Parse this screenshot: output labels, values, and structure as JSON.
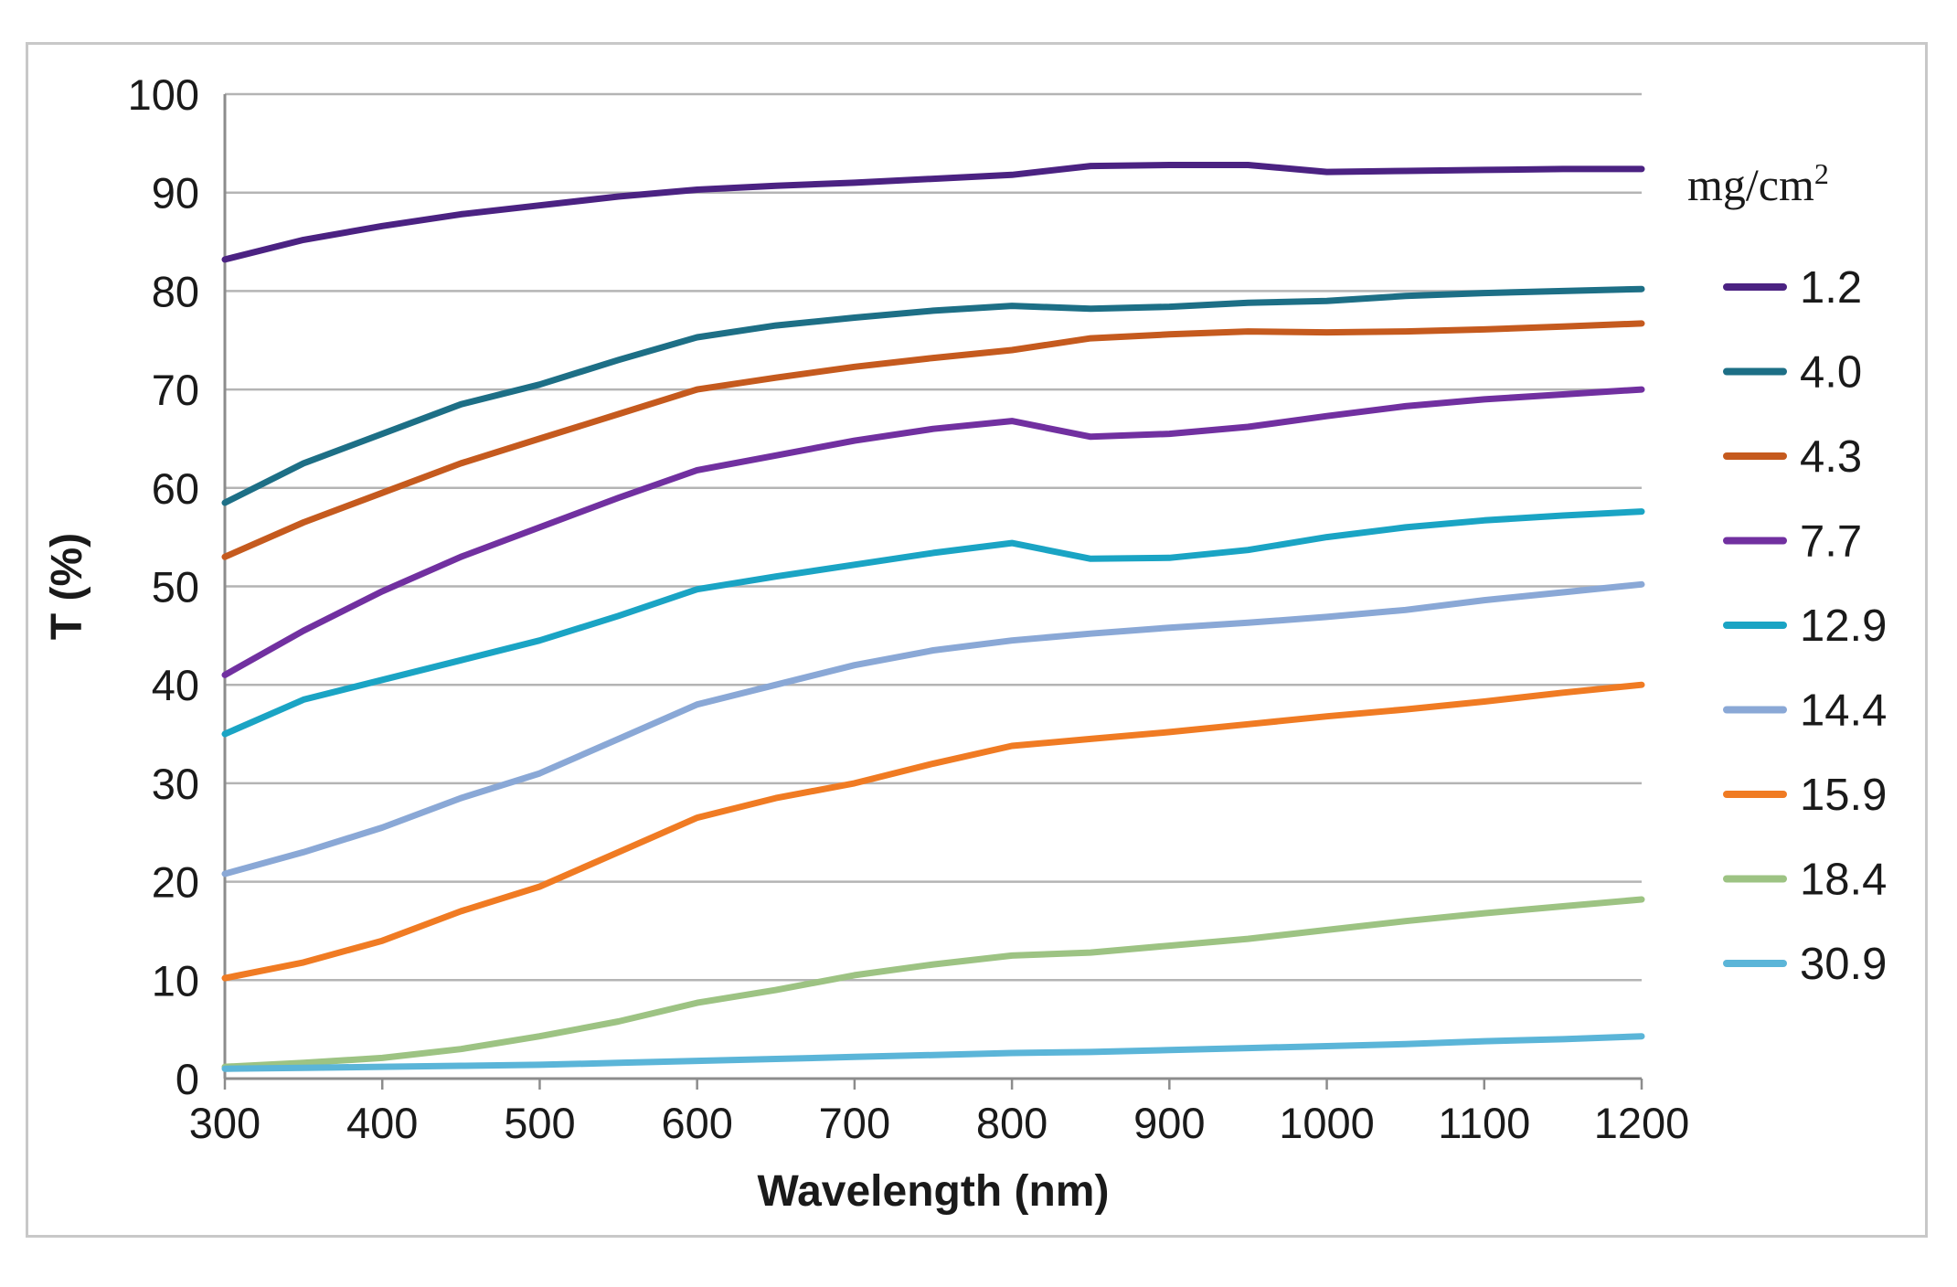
{
  "chart_data": {
    "type": "line",
    "title": "",
    "xlabel": "Wavelength (nm)",
    "ylabel": "T (%)",
    "xlim": [
      300,
      1200
    ],
    "ylim": [
      0,
      100
    ],
    "x_ticks": [
      "300",
      "400",
      "500",
      "600",
      "700",
      "800",
      "900",
      "1000",
      "1100",
      "1200"
    ],
    "y_ticks": [
      "0",
      "10",
      "20",
      "30",
      "40",
      "50",
      "60",
      "70",
      "80",
      "90",
      "100"
    ],
    "grid": true,
    "legend_position": "right",
    "legend_title": "mg/cm",
    "legend_title_sup": "2",
    "x": [
      300,
      350,
      400,
      450,
      500,
      550,
      600,
      650,
      700,
      750,
      800,
      850,
      900,
      950,
      1000,
      1050,
      1100,
      1150,
      1200
    ],
    "series": [
      {
        "name": "1.2",
        "color": "#4b2282",
        "values": [
          83.2,
          85.2,
          86.6,
          87.8,
          88.7,
          89.6,
          90.3,
          90.7,
          91.0,
          91.4,
          91.8,
          92.7,
          92.8,
          92.8,
          92.1,
          92.2,
          92.3,
          92.4,
          92.4
        ]
      },
      {
        "name": "4.0",
        "color": "#1d6f86",
        "values": [
          58.5,
          62.5,
          65.5,
          68.5,
          70.5,
          73.0,
          75.3,
          76.5,
          77.3,
          78.0,
          78.5,
          78.2,
          78.4,
          78.8,
          79.0,
          79.5,
          79.8,
          80.0,
          80.2
        ]
      },
      {
        "name": "4.3",
        "color": "#c55a1e",
        "values": [
          53.0,
          56.5,
          59.5,
          62.5,
          65.0,
          67.5,
          70.0,
          71.2,
          72.3,
          73.2,
          74.0,
          75.2,
          75.6,
          75.9,
          75.8,
          75.9,
          76.1,
          76.4,
          76.7
        ]
      },
      {
        "name": "7.7",
        "color": "#7130a0",
        "values": [
          41.0,
          45.5,
          49.5,
          53.0,
          56.0,
          59.0,
          61.8,
          63.3,
          64.8,
          66.0,
          66.8,
          65.2,
          65.5,
          66.2,
          67.3,
          68.3,
          69.0,
          69.5,
          70.0
        ]
      },
      {
        "name": "12.9",
        "color": "#1aa4c4",
        "values": [
          35.0,
          38.5,
          40.5,
          42.5,
          44.5,
          47.0,
          49.7,
          51.0,
          52.2,
          53.4,
          54.4,
          52.8,
          52.9,
          53.7,
          55.0,
          56.0,
          56.7,
          57.2,
          57.6
        ]
      },
      {
        "name": "14.4",
        "color": "#8aa8d6",
        "values": [
          20.8,
          23.0,
          25.5,
          28.5,
          31.0,
          34.5,
          38.0,
          40.0,
          42.0,
          43.5,
          44.5,
          45.2,
          45.8,
          46.3,
          46.9,
          47.6,
          48.6,
          49.4,
          50.2
        ]
      },
      {
        "name": "15.9",
        "color": "#f07b23",
        "values": [
          10.2,
          11.8,
          14.0,
          17.0,
          19.5,
          23.0,
          26.5,
          28.5,
          30.0,
          32.0,
          33.8,
          34.5,
          35.2,
          36.0,
          36.8,
          37.5,
          38.3,
          39.2,
          40.0
        ]
      },
      {
        "name": "18.4",
        "color": "#9dc383",
        "values": [
          1.2,
          1.6,
          2.1,
          3.0,
          4.3,
          5.8,
          7.7,
          9.0,
          10.5,
          11.6,
          12.5,
          12.8,
          13.5,
          14.2,
          15.1,
          16.0,
          16.8,
          17.5,
          18.2
        ]
      },
      {
        "name": "30.9",
        "color": "#5bb5d8",
        "values": [
          1.0,
          1.1,
          1.2,
          1.3,
          1.4,
          1.6,
          1.8,
          2.0,
          2.2,
          2.4,
          2.6,
          2.7,
          2.9,
          3.1,
          3.3,
          3.5,
          3.8,
          4.0,
          4.3
        ]
      }
    ]
  }
}
